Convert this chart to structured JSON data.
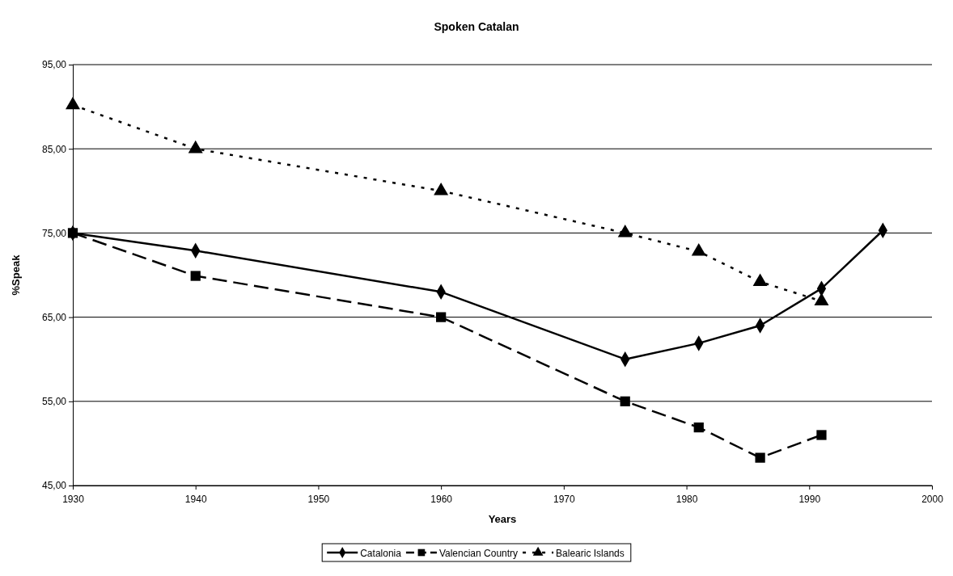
{
  "chart_data": {
    "type": "line",
    "title": "Spoken Catalan",
    "xlabel": "Years",
    "ylabel": "%Speak",
    "xlim": [
      1930,
      2000
    ],
    "xticks": [
      1930,
      1940,
      1950,
      1960,
      1970,
      1980,
      1990,
      2000
    ],
    "ylim": [
      45,
      95
    ],
    "yticks": [
      {
        "value": 45,
        "label": "45,00"
      },
      {
        "value": 55,
        "label": "55,00"
      },
      {
        "value": 65,
        "label": "65,00"
      },
      {
        "value": 75,
        "label": "75,00"
      },
      {
        "value": 85,
        "label": "85,00"
      },
      {
        "value": 95,
        "label": "95,00"
      }
    ],
    "grid": "y",
    "legend": "bottom",
    "series": [
      {
        "name": "Catalonia",
        "color": "#000000",
        "marker": "diamond",
        "line_style": "solid",
        "x": [
          1930,
          1940,
          1960,
          1975,
          1981,
          1986,
          1991,
          1996
        ],
        "values": [
          75,
          72.9,
          68,
          60,
          61.9,
          64,
          68.4,
          75.3
        ]
      },
      {
        "name": "Valencian Country",
        "color": "#000000",
        "marker": "square",
        "line_style": "dashed",
        "x": [
          1930,
          1940,
          1960,
          1975,
          1981,
          1986,
          1991
        ],
        "values": [
          75,
          69.9,
          65,
          55,
          51.9,
          48.3,
          51
        ]
      },
      {
        "name": "Balearic Islands",
        "color": "#000000",
        "marker": "triangle",
        "line_style": "dotted",
        "x": [
          1930,
          1940,
          1960,
          1975,
          1981,
          1986,
          1991
        ],
        "values": [
          90.2,
          85,
          80,
          75,
          72.8,
          69.2,
          66.9
        ]
      }
    ]
  }
}
